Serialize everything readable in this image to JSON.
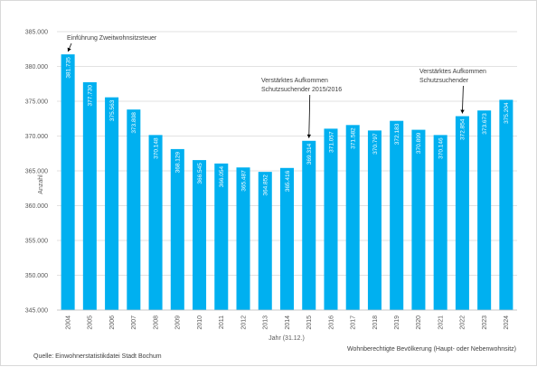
{
  "chart_data": {
    "type": "bar",
    "categories": [
      "2004",
      "2005",
      "2006",
      "2007",
      "2008",
      "2009",
      "2010",
      "2011",
      "2012",
      "2013",
      "2014",
      "2015",
      "2016",
      "2017",
      "2018",
      "2019",
      "2020",
      "2021",
      "2022",
      "2023",
      "2024"
    ],
    "values": [
      381735,
      377730,
      375563,
      373808,
      370148,
      368129,
      366545,
      366054,
      365487,
      364852,
      365416,
      369314,
      371057,
      371582,
      370797,
      372183,
      370899,
      370146,
      372854,
      373673,
      375204
    ],
    "data_labels": [
      "381.735",
      "377.730",
      "375.563",
      "373.808",
      "370.148",
      "368.129",
      "366.545",
      "366.054",
      "365.487",
      "364.852",
      "365.416",
      "369.314",
      "371.057",
      "371.582",
      "370.797",
      "372.183",
      "370.899",
      "370.146",
      "372.854",
      "373.673",
      "375.204"
    ],
    "ylabel": "Anzahl",
    "xlabel": "Jahr (31.12.)",
    "ylim": [
      345000,
      385000
    ],
    "yticks": [
      345000,
      350000,
      355000,
      360000,
      365000,
      370000,
      375000,
      380000,
      385000
    ],
    "ytick_labels": [
      "345.000",
      "350.000",
      "355.000",
      "360.000",
      "365.000",
      "370.000",
      "375.000",
      "380.000",
      "385.000"
    ],
    "grid": true,
    "bar_color": "#00b0f0",
    "annotations": [
      {
        "category": "2004",
        "lines": [
          "Einführung Zweitwohnsitzsteuer"
        ]
      },
      {
        "category": "2015",
        "lines": [
          "Verstärktes Aufkommen",
          "Schutzsuchender 2015/2016"
        ]
      },
      {
        "category": "2022",
        "lines": [
          "Verstärktes Aufkommen",
          "Schutzsuchender"
        ]
      }
    ]
  },
  "footer": {
    "source": "Quelle: Einwohnerstatistikdatei Stadt Bochum",
    "series_note": "Wohnberechtigte Bevölkerung (Haupt- oder Nebenwohnsitz)"
  }
}
